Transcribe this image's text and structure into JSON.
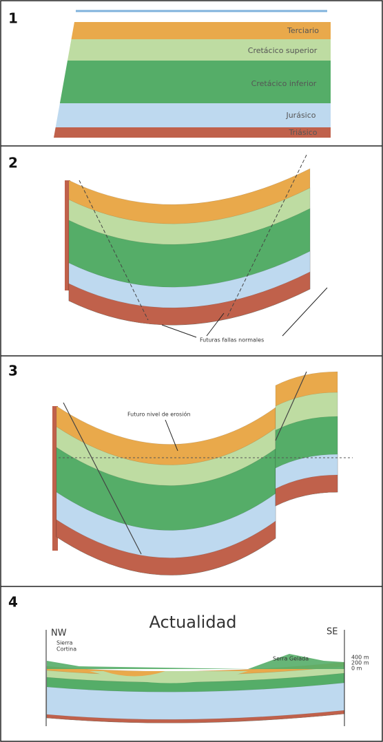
{
  "panels": [
    {
      "number": "1",
      "layers": [
        "Terciario",
        "Cretácico superior",
        "Cretácico inferior",
        "Jurásico",
        "Triásico"
      ]
    },
    {
      "number": "2",
      "annotation": "Futuras fallas normales"
    },
    {
      "number": "3",
      "annotation": "Futuro nivel de erosión"
    },
    {
      "number": "4",
      "title": "Actualidad",
      "left_label": "NW",
      "right_label": "SE",
      "left_place": [
        "Sierra",
        "Cortina"
      ],
      "right_place": "Serra Gelada",
      "scale": [
        "400 m",
        "200 m",
        "0 m"
      ]
    }
  ]
}
